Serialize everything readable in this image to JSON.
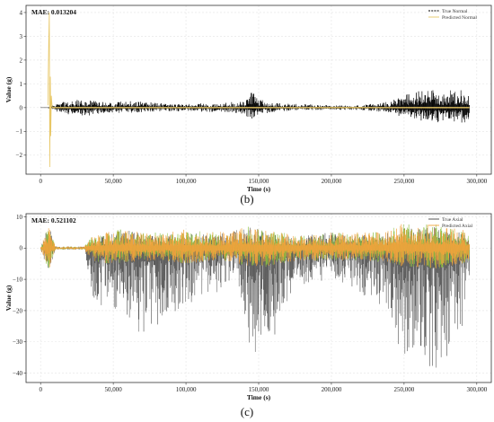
{
  "chart_data": [
    {
      "type": "line",
      "panel_caption": "(b)",
      "annotation": "MAE: 0.013204",
      "xlabel": "Time (s)",
      "ylabel": "Value (g)",
      "xlim": [
        -10000,
        310000
      ],
      "ylim": [
        -2.8,
        4.3
      ],
      "xticks": [
        0,
        50000,
        100000,
        150000,
        200000,
        250000,
        300000
      ],
      "xtick_labels": [
        "0",
        "50,000",
        "100,000",
        "150,000",
        "200,000",
        "250,000",
        "300,000"
      ],
      "yticks": [
        -2,
        -1,
        0,
        1,
        2,
        3,
        4
      ],
      "ytick_labels": [
        "−2",
        "−1",
        "0",
        "1",
        "2",
        "3",
        "4"
      ],
      "grid": true,
      "legend_position": "top-right",
      "colors": {
        "true": "#000000",
        "predicted": "#e8c766"
      },
      "series": [
        {
          "name": "True Normal",
          "style": "dashed",
          "envelope": {
            "x": [
              0,
              5000,
              6000,
              7000,
              10000,
              20000,
              30000,
              40000,
              50000,
              60000,
              70000,
              80000,
              100000,
              120000,
              140000,
              145000,
              150000,
              160000,
              180000,
              200000,
              220000,
              240000,
              255000,
              265000,
              275000,
              285000,
              295000
            ],
            "upper": [
              0.0,
              0.0,
              0.05,
              0.1,
              0.15,
              0.3,
              0.35,
              0.3,
              0.2,
              0.3,
              0.25,
              0.2,
              0.15,
              0.2,
              0.25,
              0.78,
              0.35,
              0.2,
              0.15,
              0.1,
              0.1,
              0.25,
              0.7,
              0.8,
              0.65,
              0.85,
              0.6
            ],
            "lower": [
              0.0,
              0.0,
              -0.05,
              -0.1,
              -0.15,
              -0.3,
              -0.35,
              -0.3,
              -0.2,
              -0.25,
              -0.2,
              -0.15,
              -0.15,
              -0.2,
              -0.25,
              -0.55,
              -0.3,
              -0.2,
              -0.1,
              -0.1,
              -0.1,
              -0.2,
              -0.55,
              -0.7,
              -0.6,
              -0.75,
              -0.55
            ]
          }
        },
        {
          "name": "Predicted Normal",
          "style": "solid",
          "envelope": {
            "x": [
              0,
              5000,
              6000,
              7000,
              10000,
              50000,
              100000,
              150000,
              200000,
              250000,
              295000
            ],
            "upper": [
              0.02,
              0.1,
              4.0,
              0.3,
              0.05,
              0.05,
              0.05,
              0.08,
              0.05,
              0.08,
              0.05
            ],
            "lower": [
              -0.02,
              -0.1,
              -2.5,
              -0.3,
              -0.05,
              -0.05,
              -0.05,
              -0.08,
              -0.05,
              -0.08,
              -0.05
            ]
          }
        }
      ]
    },
    {
      "type": "line",
      "panel_caption": "(c)",
      "annotation": "MAE: 0.521102",
      "xlabel": "Time (s)",
      "ylabel": "Value (g)",
      "xlim": [
        -10000,
        310000
      ],
      "ylim": [
        -43,
        11
      ],
      "xticks": [
        0,
        50000,
        100000,
        150000,
        200000,
        250000,
        300000
      ],
      "xtick_labels": [
        "0",
        "50,000",
        "100,000",
        "150,000",
        "200,000",
        "250,000",
        "300,000"
      ],
      "yticks": [
        -40,
        -30,
        -20,
        -10,
        0,
        10
      ],
      "ytick_labels": [
        "−40",
        "−30",
        "−20",
        "−10",
        "0",
        "10"
      ],
      "grid": true,
      "legend_position": "top-right",
      "colors": {
        "true": "#444444",
        "predicted": "#f2a33c",
        "predicted_overlap": "#8bbf3f"
      },
      "series": [
        {
          "name": "True Axial",
          "style": "solid",
          "envelope": {
            "x": [
              0,
              3000,
              6000,
              10000,
              30000,
              35000,
              45000,
              55000,
              70000,
              85000,
              100000,
              120000,
              135000,
              145000,
              150000,
              155000,
              165000,
              180000,
              200000,
              220000,
              240000,
              250000,
              260000,
              270000,
              280000,
              290000,
              295000
            ],
            "upper": [
              0.0,
              5.0,
              8.0,
              0.5,
              0.5,
              3.0,
              4.0,
              6.0,
              5.0,
              4.0,
              5.0,
              4.0,
              6.0,
              7.0,
              6.0,
              5.0,
              4.0,
              4.0,
              5.0,
              4.0,
              5.0,
              7.0,
              6.0,
              7.0,
              6.0,
              5.0,
              4.0
            ],
            "lower": [
              0.0,
              -5.0,
              -8.0,
              -0.5,
              -0.5,
              -15.0,
              -20.0,
              -22.0,
              -28.0,
              -25.0,
              -18.0,
              -15.0,
              -8.0,
              -38.0,
              -30.0,
              -40.0,
              -20.0,
              -12.0,
              -10.0,
              -15.0,
              -20.0,
              -38.0,
              -33.0,
              -40.0,
              -35.0,
              -25.0,
              -10.0
            ]
          }
        },
        {
          "name": "Predicted Axial",
          "style": "solid",
          "envelope": {
            "x": [
              0,
              3000,
              6000,
              10000,
              30000,
              35000,
              45000,
              55000,
              70000,
              85000,
              100000,
              120000,
              135000,
              145000,
              150000,
              155000,
              165000,
              180000,
              200000,
              220000,
              240000,
              250000,
              260000,
              270000,
              280000,
              290000,
              295000
            ],
            "upper": [
              0.0,
              5.0,
              8.0,
              0.5,
              0.5,
              4.0,
              5.0,
              6.0,
              5.0,
              5.0,
              6.0,
              5.0,
              6.0,
              7.0,
              6.0,
              6.0,
              5.0,
              4.0,
              5.0,
              5.0,
              6.0,
              8.0,
              7.0,
              8.0,
              7.0,
              6.0,
              4.0
            ],
            "lower": [
              0.0,
              -5.0,
              -7.0,
              -0.5,
              -0.5,
              -4.0,
              -5.0,
              -5.0,
              -4.0,
              -4.0,
              -5.0,
              -4.0,
              -5.0,
              -6.0,
              -6.0,
              -6.0,
              -5.0,
              -4.0,
              -4.0,
              -4.0,
              -5.0,
              -6.0,
              -6.0,
              -7.0,
              -6.0,
              -5.0,
              -4.0
            ]
          }
        }
      ]
    }
  ]
}
